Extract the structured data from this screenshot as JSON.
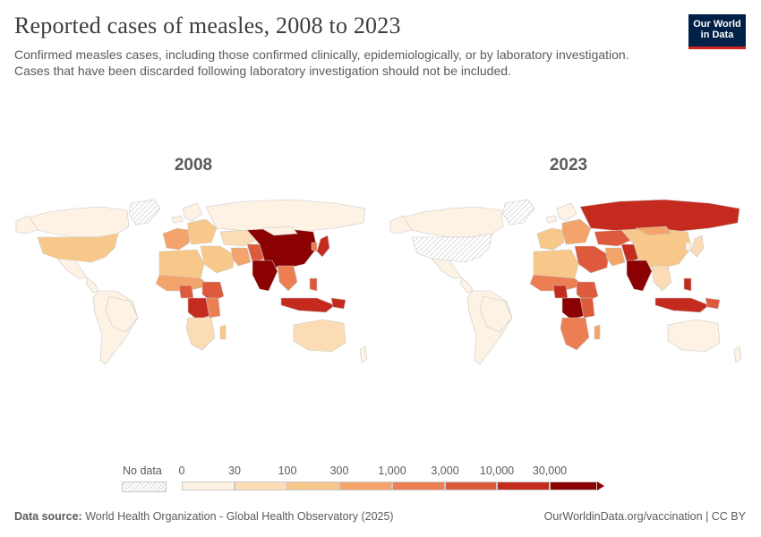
{
  "header": {
    "title": "Reported cases of measles, 2008 to 2023",
    "subtitle_line1": "Confirmed measles cases, including those confirmed clinically, epidemiologically, or by laboratory investigation.",
    "subtitle_line2": "Cases that have been discarded following laboratory investigation should not be included.",
    "logo_line1": "Our World",
    "logo_line2": "in Data"
  },
  "maps": [
    {
      "year": "2008"
    },
    {
      "year": "2023"
    }
  ],
  "legend": {
    "no_data_label": "No data",
    "ticks": [
      "0",
      "30",
      "100",
      "300",
      "1,000",
      "3,000",
      "10,000",
      "30,000"
    ],
    "colors": [
      "#fdf2e4",
      "#fbdcb5",
      "#f8c88a",
      "#f3a46b",
      "#eb7e52",
      "#dd5a3c",
      "#c42b1e",
      "#8b0000"
    ]
  },
  "footer": {
    "source_label": "Data source:",
    "source_text": "World Health Organization - Global Health Observatory (2025)",
    "url": "OurWorldinData.org/vaccination | CC BY"
  }
}
